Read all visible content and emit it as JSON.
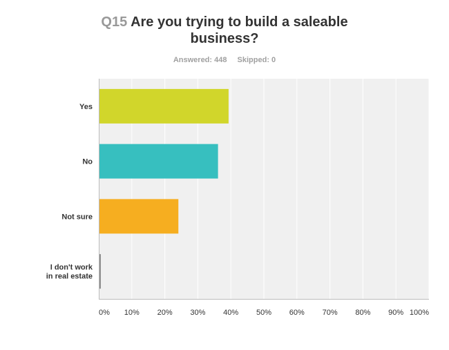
{
  "question": {
    "number": "Q15",
    "title_line1": "Are you trying to build a saleable",
    "title_line2": "business?"
  },
  "stats": {
    "answered": "Answered: 448",
    "skipped": "Skipped: 0"
  },
  "chart_data": {
    "type": "bar",
    "orientation": "horizontal",
    "categories": [
      [
        "Yes"
      ],
      [
        "No"
      ],
      [
        "Not sure"
      ],
      [
        "I don't work",
        "in real estate"
      ]
    ],
    "values": [
      39.1,
      35.9,
      23.9,
      0.4
    ],
    "colors": [
      "#d1d62b",
      "#37bfbf",
      "#f6ae20",
      "#8a8a8a"
    ],
    "xlim": [
      0,
      100
    ],
    "xticks": [
      "0%",
      "10%",
      "20%",
      "30%",
      "40%",
      "50%",
      "60%",
      "70%",
      "80%",
      "90%",
      "100%"
    ],
    "grid": true,
    "plot_background": "#f0f0f0"
  }
}
